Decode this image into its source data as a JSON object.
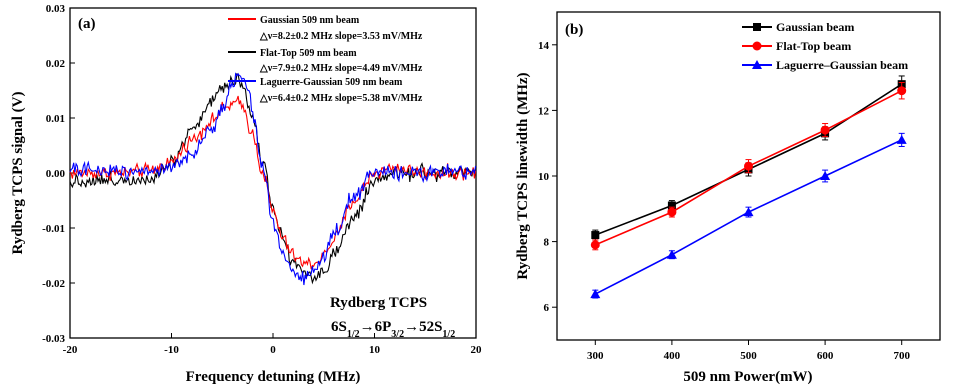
{
  "chart_data": [
    {
      "type": "line",
      "panel_label": "(a)",
      "xlabel": "Frequency detuning (MHz)",
      "ylabel": "Rydberg TCPS signal (V)",
      "xlim": [
        -20,
        20
      ],
      "ylim": [
        -0.03,
        0.03
      ],
      "xticks": [
        -20,
        -10,
        0,
        10,
        20
      ],
      "yticks": [
        -0.03,
        -0.02,
        -0.01,
        0.0,
        0.01,
        0.02,
        0.03
      ],
      "xtick_labels": [
        "-20",
        "-10",
        "0",
        "10",
        "20"
      ],
      "ytick_labels": [
        "-0.03",
        "-0.02",
        "-0.01",
        "0.00",
        "0.01",
        "0.02",
        "0.03"
      ],
      "legend_position": "top-right",
      "series": [
        {
          "name": "Gaussian 509 nm beam",
          "detail": "△ν=8.2±0.2 MHz  slope=3.53 mV/MHz",
          "color": "#ff0000",
          "noise": 0.0011,
          "x": [
            -20,
            -15,
            -12,
            -10,
            -8,
            -6,
            -5,
            -4,
            -3.5,
            -3,
            -2,
            -1,
            0,
            1,
            2,
            3,
            4,
            5,
            6,
            8,
            10,
            12,
            15,
            20
          ],
          "y": [
            0.0,
            0.0,
            0.0005,
            0.002,
            0.006,
            0.0095,
            0.0115,
            0.0125,
            0.0128,
            0.012,
            0.007,
            0.0,
            -0.007,
            -0.012,
            -0.015,
            -0.0165,
            -0.0165,
            -0.015,
            -0.012,
            -0.005,
            0.0,
            0.001,
            0.0,
            0.0
          ]
        },
        {
          "name": "Flat-Top 509 nm beam",
          "detail": "△ν=7.9±0.2 MHz  slope=4.49 mV/MHz",
          "color": "#000000",
          "noise": 0.0012,
          "x": [
            -20,
            -14,
            -12,
            -10,
            -8,
            -6,
            -5,
            -4,
            -3.5,
            -3,
            -2,
            -1,
            0,
            1,
            2,
            3,
            4,
            5,
            6,
            8,
            10,
            12,
            15,
            20
          ],
          "y": [
            -0.0015,
            -0.0012,
            -0.0008,
            0.002,
            0.008,
            0.013,
            0.0155,
            0.017,
            0.0172,
            0.016,
            0.01,
            0.002,
            -0.006,
            -0.012,
            -0.016,
            -0.018,
            -0.019,
            -0.018,
            -0.015,
            -0.008,
            -0.002,
            0.0,
            0.0,
            0.0
          ]
        },
        {
          "name": "Laguerre-Gaussian 509 nm beam",
          "detail": "△ν=6.4±0.2 MHz  slope=5.38 mV/MHz",
          "color": "#0000ff",
          "noise": 0.0012,
          "x": [
            -20,
            -12,
            -10,
            -8,
            -6,
            -5,
            -4,
            -3.5,
            -3,
            -2.5,
            -2,
            -1,
            0,
            1,
            2,
            3,
            4,
            5,
            6,
            8,
            10,
            12,
            15,
            20
          ],
          "y": [
            0.0005,
            0.0005,
            0.001,
            0.003,
            0.008,
            0.012,
            0.0165,
            0.018,
            0.0175,
            0.015,
            0.011,
            0.001,
            -0.009,
            -0.015,
            -0.018,
            -0.019,
            -0.018,
            -0.015,
            -0.011,
            -0.004,
            0.0,
            0.0,
            0.0,
            0.0
          ]
        }
      ],
      "annotation": {
        "line1": "Rydberg TCPS",
        "line2": {
          "p1": "6S",
          "s1": "1/2",
          "arrow1": "→",
          "p2": "6P",
          "s2": "3/2",
          "arrow2": "→",
          "p3": "52S",
          "s3": "1/2"
        }
      }
    },
    {
      "type": "line",
      "panel_label": "(b)",
      "xlabel": "509 nm Power(mW)",
      "ylabel": "Rydberg TCPS linewidth (MHz)",
      "xlim": [
        250,
        750
      ],
      "ylim": [
        5,
        15
      ],
      "xticks": [
        300,
        400,
        500,
        600,
        700
      ],
      "yticks": [
        6,
        8,
        10,
        12,
        14
      ],
      "xtick_labels": [
        "300",
        "400",
        "500",
        "600",
        "700"
      ],
      "ytick_labels": [
        "6",
        "8",
        "10",
        "12",
        "14"
      ],
      "legend_position": "top-left",
      "series": [
        {
          "name": "Gaussian beam",
          "color": "#000000",
          "marker": "square",
          "x": [
            300,
            400,
            500,
            600,
            700
          ],
          "y": [
            8.2,
            9.1,
            10.2,
            11.3,
            12.8
          ],
          "err": [
            0.15,
            0.15,
            0.2,
            0.2,
            0.25
          ]
        },
        {
          "name": "Flat-Top beam",
          "color": "#ff0000",
          "marker": "circle",
          "x": [
            300,
            400,
            500,
            600,
            700
          ],
          "y": [
            7.9,
            8.9,
            10.3,
            11.4,
            12.6
          ],
          "err": [
            0.15,
            0.15,
            0.2,
            0.2,
            0.25
          ]
        },
        {
          "name": "Laguerre–Gaussian beam",
          "color": "#0000ff",
          "marker": "triangle",
          "x": [
            300,
            400,
            500,
            600,
            700
          ],
          "y": [
            6.4,
            7.6,
            8.9,
            10.0,
            11.1
          ],
          "err": [
            0.12,
            0.12,
            0.15,
            0.18,
            0.2
          ]
        }
      ]
    }
  ]
}
